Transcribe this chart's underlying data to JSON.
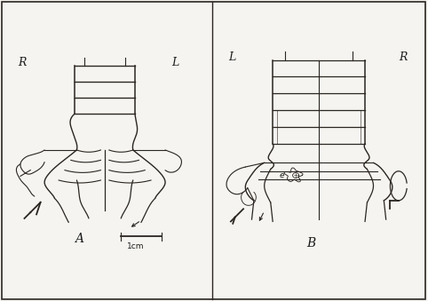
{
  "figure_width": 4.82,
  "figure_height": 3.39,
  "dpi": 100,
  "bg_color": "#f5f4f0",
  "line_color": "#2a2520",
  "line_width": 0.8,
  "text_color": "#1a1a1a",
  "label_A": "A",
  "label_B": "B",
  "label_R_left": "R",
  "label_L_left": "L",
  "label_L_right": "L",
  "label_R_right": "R",
  "label_e": "e",
  "scale_bar_label": "1cm"
}
